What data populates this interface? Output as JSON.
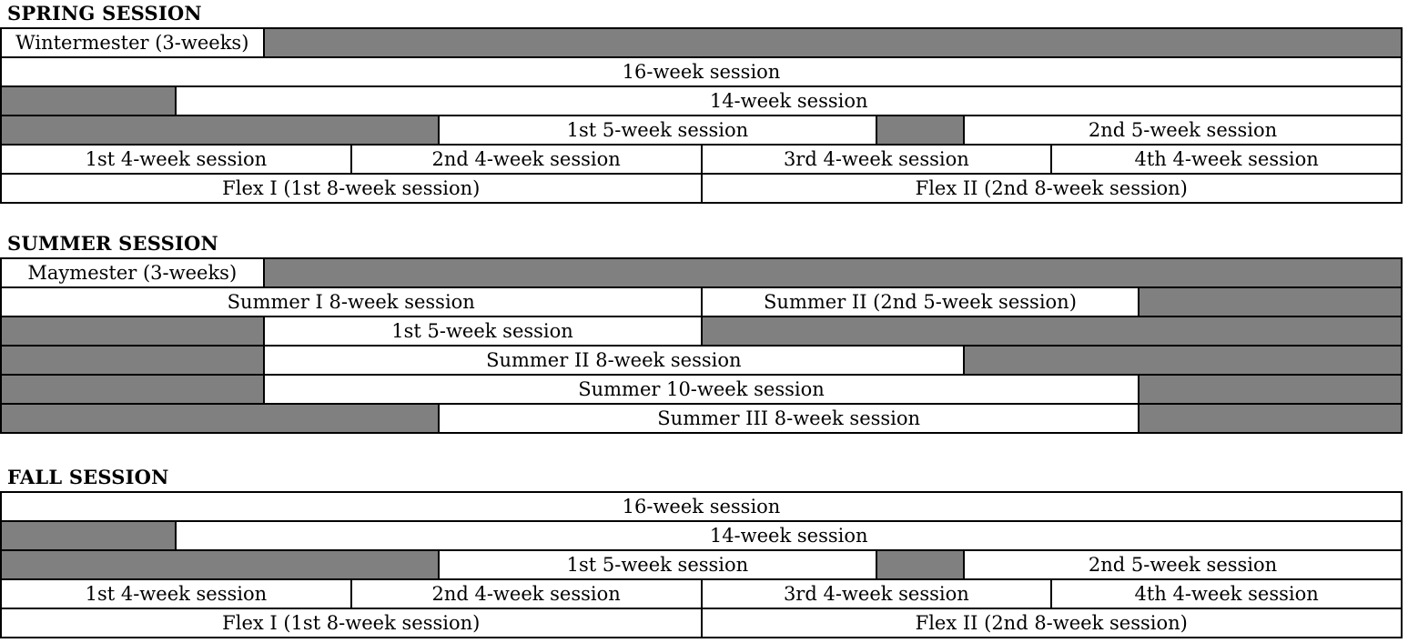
{
  "colors": {
    "bar_gray": "#808080",
    "border_black": "#000000",
    "cell_white": "#ffffff",
    "text": "#000000",
    "page_background": "#ffffff"
  },
  "grid": {
    "total_weeks": 16
  },
  "sections": [
    {
      "id": "spring",
      "title": "SPRING SESSION",
      "rows": [
        {
          "cells": [
            {
              "label": "Wintermester (3-weeks)",
              "from": 0,
              "to": 3,
              "fill": "white"
            },
            {
              "label": "",
              "from": 3,
              "to": 16,
              "fill": "gray"
            }
          ]
        },
        {
          "cells": [
            {
              "label": "16-week session",
              "from": 0,
              "to": 16,
              "fill": "white"
            }
          ]
        },
        {
          "cells": [
            {
              "label": "",
              "from": 0,
              "to": 2,
              "fill": "gray"
            },
            {
              "label": "14-week session",
              "from": 2,
              "to": 16,
              "fill": "white"
            }
          ]
        },
        {
          "cells": [
            {
              "label": "",
              "from": 0,
              "to": 5,
              "fill": "gray"
            },
            {
              "label": "1st 5-week session",
              "from": 5,
              "to": 10,
              "fill": "white"
            },
            {
              "label": "",
              "from": 10,
              "to": 11,
              "fill": "gray"
            },
            {
              "label": "2nd 5-week session",
              "from": 11,
              "to": 16,
              "fill": "white"
            }
          ]
        },
        {
          "cells": [
            {
              "label": "1st 4-week session",
              "from": 0,
              "to": 4,
              "fill": "white"
            },
            {
              "label": "2nd 4-week session",
              "from": 4,
              "to": 8,
              "fill": "white"
            },
            {
              "label": "3rd 4-week session",
              "from": 8,
              "to": 12,
              "fill": "white"
            },
            {
              "label": "4th 4-week session",
              "from": 12,
              "to": 16,
              "fill": "white"
            }
          ]
        },
        {
          "cells": [
            {
              "label": "Flex I (1st 8-week session)",
              "from": 0,
              "to": 8,
              "fill": "white"
            },
            {
              "label": "Flex II (2nd 8-week session)",
              "from": 8,
              "to": 16,
              "fill": "white"
            }
          ]
        }
      ]
    },
    {
      "id": "summer",
      "title": "SUMMER SESSION",
      "rows": [
        {
          "cells": [
            {
              "label": "Maymester (3-weeks)",
              "from": 0,
              "to": 3,
              "fill": "white"
            },
            {
              "label": "",
              "from": 3,
              "to": 16,
              "fill": "gray"
            }
          ]
        },
        {
          "cells": [
            {
              "label": "Summer I 8-week session",
              "from": 0,
              "to": 8,
              "fill": "white"
            },
            {
              "label": "Summer II (2nd 5-week session)",
              "from": 8,
              "to": 13,
              "fill": "white"
            },
            {
              "label": "",
              "from": 13,
              "to": 16,
              "fill": "gray"
            }
          ]
        },
        {
          "cells": [
            {
              "label": "",
              "from": 0,
              "to": 3,
              "fill": "gray"
            },
            {
              "label": "1st 5-week session",
              "from": 3,
              "to": 8,
              "fill": "white"
            },
            {
              "label": "",
              "from": 8,
              "to": 16,
              "fill": "gray"
            }
          ]
        },
        {
          "cells": [
            {
              "label": "",
              "from": 0,
              "to": 3,
              "fill": "gray"
            },
            {
              "label": "Summer II 8-week session",
              "from": 3,
              "to": 11,
              "fill": "white"
            },
            {
              "label": "",
              "from": 11,
              "to": 16,
              "fill": "gray"
            }
          ]
        },
        {
          "cells": [
            {
              "label": "",
              "from": 0,
              "to": 3,
              "fill": "gray"
            },
            {
              "label": "Summer 10-week session",
              "from": 3,
              "to": 13,
              "fill": "white"
            },
            {
              "label": "",
              "from": 13,
              "to": 16,
              "fill": "gray"
            }
          ]
        },
        {
          "cells": [
            {
              "label": "",
              "from": 0,
              "to": 5,
              "fill": "gray"
            },
            {
              "label": "Summer III 8-week session",
              "from": 5,
              "to": 13,
              "fill": "white"
            },
            {
              "label": "",
              "from": 13,
              "to": 16,
              "fill": "gray"
            }
          ]
        }
      ]
    },
    {
      "id": "fall",
      "title": "FALL SESSION",
      "rows": [
        {
          "cells": [
            {
              "label": "16-week session",
              "from": 0,
              "to": 16,
              "fill": "white"
            }
          ]
        },
        {
          "cells": [
            {
              "label": "",
              "from": 0,
              "to": 2,
              "fill": "gray"
            },
            {
              "label": "14-week session",
              "from": 2,
              "to": 16,
              "fill": "white"
            }
          ]
        },
        {
          "cells": [
            {
              "label": "",
              "from": 0,
              "to": 5,
              "fill": "gray"
            },
            {
              "label": "1st 5-week session",
              "from": 5,
              "to": 10,
              "fill": "white"
            },
            {
              "label": "",
              "from": 10,
              "to": 11,
              "fill": "gray"
            },
            {
              "label": "2nd 5-week session",
              "from": 11,
              "to": 16,
              "fill": "white"
            }
          ]
        },
        {
          "cells": [
            {
              "label": "1st 4-week session",
              "from": 0,
              "to": 4,
              "fill": "white"
            },
            {
              "label": "2nd 4-week session",
              "from": 4,
              "to": 8,
              "fill": "white"
            },
            {
              "label": "3rd 4-week session",
              "from": 8,
              "to": 12,
              "fill": "white"
            },
            {
              "label": "4th 4-week session",
              "from": 12,
              "to": 16,
              "fill": "white"
            }
          ]
        },
        {
          "cells": [
            {
              "label": "Flex I (1st 8-week session)",
              "from": 0,
              "to": 8,
              "fill": "white"
            },
            {
              "label": "Flex II (2nd 8-week session)",
              "from": 8,
              "to": 16,
              "fill": "white"
            }
          ]
        }
      ]
    }
  ]
}
